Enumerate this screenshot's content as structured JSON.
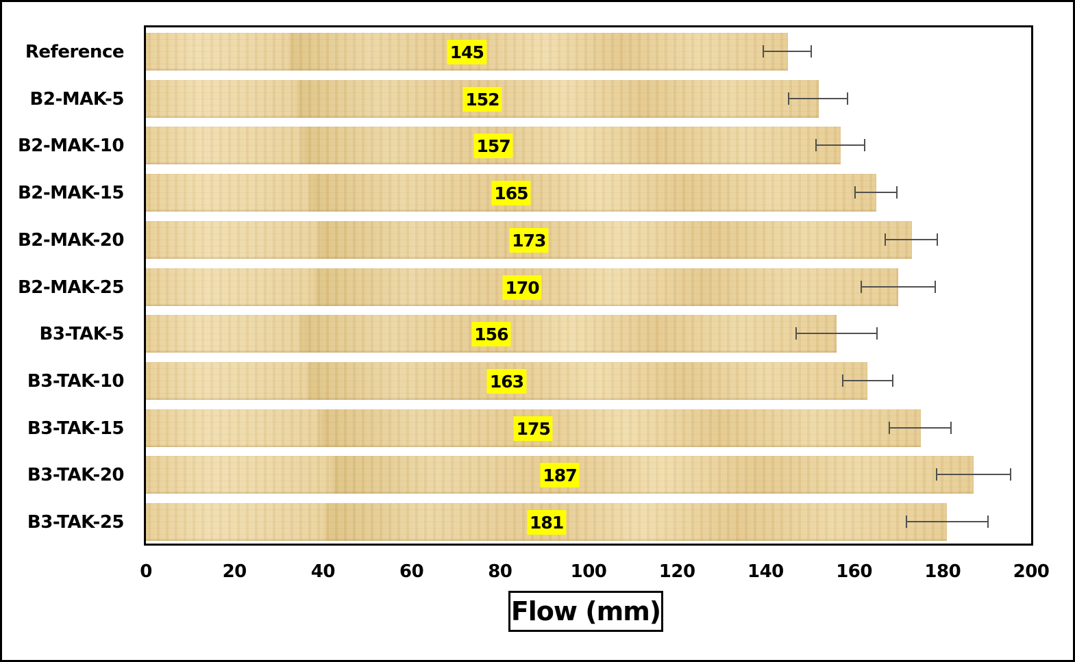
{
  "chart_data": {
    "type": "bar",
    "orientation": "horizontal",
    "title": "",
    "xlabel": "Flow (mm)",
    "ylabel": "",
    "xlim": [
      0,
      200
    ],
    "xticks": [
      0,
      20,
      40,
      60,
      80,
      100,
      120,
      140,
      160,
      180,
      200
    ],
    "grid": false,
    "legend": null,
    "categories": [
      "Reference",
      "B2-MAK-5",
      "B2-MAK-10",
      "B2-MAK-15",
      "B2-MAK-20",
      "B2-MAK-25",
      "B3-TAK-5",
      "B3-TAK-10",
      "B3-TAK-15",
      "B3-TAK-20",
      "B3-TAK-25"
    ],
    "values": [
      145,
      152,
      157,
      165,
      173,
      170,
      156,
      163,
      175,
      187,
      181
    ],
    "error_bars": [
      {
        "low": 139.3,
        "high": 150.4
      },
      {
        "low": 145.0,
        "high": 158.7
      },
      {
        "low": 151.2,
        "high": 162.5
      },
      {
        "low": 160.0,
        "high": 169.8
      },
      {
        "low": 166.9,
        "high": 178.9
      },
      {
        "low": 161.5,
        "high": 178.5
      },
      {
        "low": 146.8,
        "high": 165.3
      },
      {
        "low": 157.2,
        "high": 168.9
      },
      {
        "low": 167.8,
        "high": 182.0
      },
      {
        "low": 178.5,
        "high": 195.5
      },
      {
        "low": 171.7,
        "high": 190.4
      }
    ],
    "data_labels": [
      "145",
      "152",
      "157",
      "165",
      "173",
      "170",
      "156",
      "163",
      "175",
      "187",
      "181"
    ],
    "bar_fill": "papyrus texture",
    "data_label_background": "#ffff00"
  },
  "axis": {
    "x_title": "Flow (mm)",
    "x_ticks": [
      "0",
      "20",
      "40",
      "60",
      "80",
      "100",
      "120",
      "140",
      "160",
      "180",
      "200"
    ]
  },
  "colors": {
    "bar": "#e8cf96",
    "label_bg": "#ffff00",
    "error_bar": "#505050",
    "border": "#000000"
  }
}
